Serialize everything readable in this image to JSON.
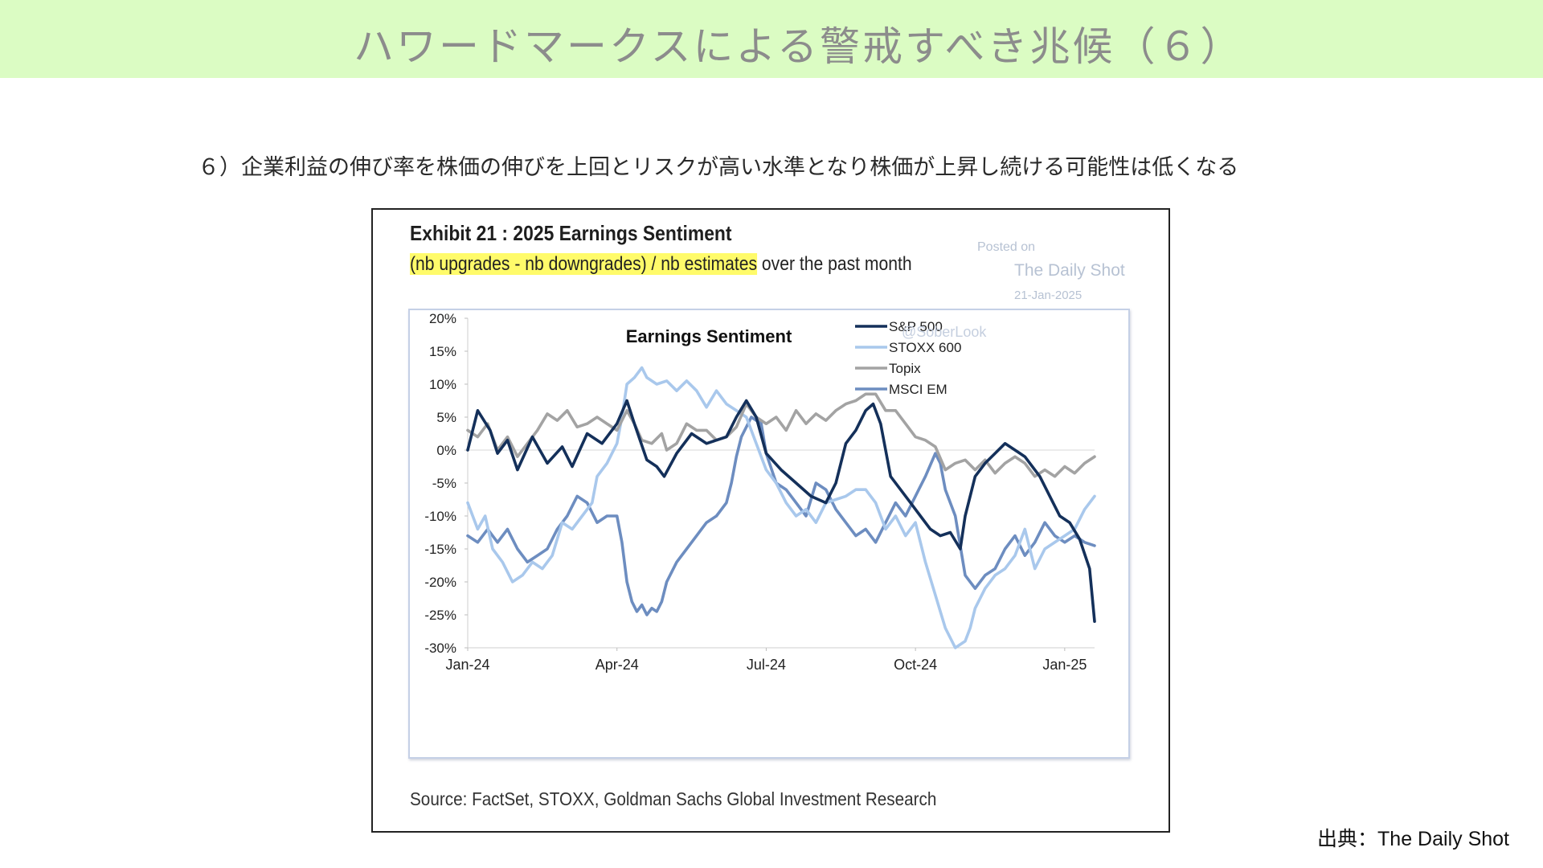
{
  "header": {
    "title": "ハワードマークスによる警戒すべき兆候（６）"
  },
  "subtitle": "６）企業利益の伸び率を株価の伸びを上回とリスクが高い水準となり株価が上昇し続ける可能性は低くなる",
  "exhibit": {
    "title": "Exhibit 21 : 2025 Earnings Sentiment",
    "desc_highlight": "(nb upgrades - nb downgrades) / nb estimates",
    "desc_rest": " over the past month",
    "posted_on": "Posted on",
    "posted_source": "The Daily Shot",
    "posted_date": "21-Jan-2025",
    "watermark": "@SoberLook",
    "source": "Source: FactSet, STOXX, Goldman Sachs Global Investment Research"
  },
  "credit": "出典：The Daily Shot",
  "chart_data": {
    "type": "line",
    "title": "Earnings Sentiment",
    "xlabel": "",
    "ylabel": "",
    "x_ticks": [
      "Jan-24",
      "Apr-24",
      "Jul-24",
      "Oct-24",
      "Jan-25"
    ],
    "y_ticks": [
      "20%",
      "15%",
      "10%",
      "5%",
      "0%",
      "-5%",
      "-10%",
      "-15%",
      "-20%",
      "-25%",
      "-30%"
    ],
    "ylim": [
      -30,
      20
    ],
    "xlim": [
      0,
      12.6
    ],
    "x_unit": "months since Jan-24",
    "grid": false,
    "zero_line": true,
    "legend_position": "top-right",
    "series": [
      {
        "name": "S&P 500",
        "color": "#14305a",
        "points": [
          [
            0,
            0
          ],
          [
            0.2,
            6
          ],
          [
            0.45,
            3
          ],
          [
            0.6,
            -0.5
          ],
          [
            0.8,
            1.5
          ],
          [
            1.0,
            -3
          ],
          [
            1.3,
            2
          ],
          [
            1.6,
            -2
          ],
          [
            1.9,
            0.5
          ],
          [
            2.1,
            -2.5
          ],
          [
            2.4,
            2.5
          ],
          [
            2.7,
            1
          ],
          [
            3.0,
            4
          ],
          [
            3.2,
            7.5
          ],
          [
            3.35,
            4
          ],
          [
            3.6,
            -1.5
          ],
          [
            3.8,
            -2.5
          ],
          [
            3.95,
            -4
          ],
          [
            4.2,
            -0.5
          ],
          [
            4.5,
            2.5
          ],
          [
            4.8,
            1
          ],
          [
            5.2,
            2
          ],
          [
            5.4,
            5
          ],
          [
            5.6,
            7.5
          ],
          [
            5.8,
            5
          ],
          [
            6.0,
            -0.5
          ],
          [
            6.3,
            -3
          ],
          [
            6.6,
            -5
          ],
          [
            6.9,
            -7
          ],
          [
            7.2,
            -8
          ],
          [
            7.4,
            -5
          ],
          [
            7.6,
            1
          ],
          [
            7.8,
            3
          ],
          [
            8.0,
            6
          ],
          [
            8.15,
            7
          ],
          [
            8.3,
            4
          ],
          [
            8.5,
            -4
          ],
          [
            8.7,
            -6
          ],
          [
            8.9,
            -8
          ],
          [
            9.1,
            -10
          ],
          [
            9.3,
            -12
          ],
          [
            9.5,
            -13
          ],
          [
            9.7,
            -12.5
          ],
          [
            9.9,
            -15
          ],
          [
            10.0,
            -10
          ],
          [
            10.2,
            -4
          ],
          [
            10.4,
            -2
          ],
          [
            10.6,
            -0.5
          ],
          [
            10.8,
            1
          ],
          [
            11.0,
            0
          ],
          [
            11.2,
            -1
          ],
          [
            11.5,
            -4
          ],
          [
            11.7,
            -7
          ],
          [
            11.9,
            -10
          ],
          [
            12.1,
            -11
          ],
          [
            12.3,
            -13.5
          ],
          [
            12.5,
            -18
          ],
          [
            12.6,
            -26
          ]
        ]
      },
      {
        "name": "STOXX 600",
        "color": "#a9c8ec",
        "points": [
          [
            0,
            -8
          ],
          [
            0.2,
            -12
          ],
          [
            0.35,
            -10
          ],
          [
            0.5,
            -15
          ],
          [
            0.7,
            -17
          ],
          [
            0.9,
            -20
          ],
          [
            1.1,
            -19
          ],
          [
            1.3,
            -17
          ],
          [
            1.5,
            -18
          ],
          [
            1.7,
            -16
          ],
          [
            1.9,
            -11
          ],
          [
            2.1,
            -12
          ],
          [
            2.3,
            -10
          ],
          [
            2.5,
            -8
          ],
          [
            2.6,
            -4
          ],
          [
            2.8,
            -2
          ],
          [
            3.0,
            1
          ],
          [
            3.1,
            5
          ],
          [
            3.2,
            10
          ],
          [
            3.35,
            11
          ],
          [
            3.5,
            12.5
          ],
          [
            3.6,
            11
          ],
          [
            3.8,
            10
          ],
          [
            4.0,
            10.5
          ],
          [
            4.2,
            9
          ],
          [
            4.4,
            10.5
          ],
          [
            4.6,
            9
          ],
          [
            4.8,
            6.5
          ],
          [
            5.0,
            9
          ],
          [
            5.2,
            7
          ],
          [
            5.4,
            6
          ],
          [
            5.6,
            5
          ],
          [
            5.8,
            1
          ],
          [
            6.0,
            -3
          ],
          [
            6.2,
            -5
          ],
          [
            6.4,
            -8
          ],
          [
            6.6,
            -10
          ],
          [
            6.8,
            -9
          ],
          [
            7.0,
            -11
          ],
          [
            7.2,
            -8
          ],
          [
            7.4,
            -7.5
          ],
          [
            7.6,
            -7
          ],
          [
            7.8,
            -6
          ],
          [
            8.0,
            -6
          ],
          [
            8.2,
            -8
          ],
          [
            8.4,
            -12
          ],
          [
            8.6,
            -10
          ],
          [
            8.8,
            -13
          ],
          [
            9.0,
            -11
          ],
          [
            9.2,
            -17
          ],
          [
            9.4,
            -22
          ],
          [
            9.6,
            -27
          ],
          [
            9.8,
            -30
          ],
          [
            10.0,
            -29
          ],
          [
            10.1,
            -27
          ],
          [
            10.2,
            -24
          ],
          [
            10.4,
            -21
          ],
          [
            10.6,
            -19
          ],
          [
            10.8,
            -18
          ],
          [
            11.0,
            -16
          ],
          [
            11.2,
            -12
          ],
          [
            11.4,
            -18
          ],
          [
            11.6,
            -15
          ],
          [
            11.8,
            -14
          ],
          [
            12.0,
            -13
          ],
          [
            12.2,
            -12
          ],
          [
            12.4,
            -9
          ],
          [
            12.6,
            -7
          ]
        ]
      },
      {
        "name": "Topix",
        "color": "#a3a3a3",
        "points": [
          [
            0,
            3
          ],
          [
            0.2,
            2
          ],
          [
            0.4,
            4
          ],
          [
            0.6,
            0
          ],
          [
            0.8,
            2
          ],
          [
            1.0,
            -1
          ],
          [
            1.2,
            1
          ],
          [
            1.4,
            3
          ],
          [
            1.6,
            5.5
          ],
          [
            1.8,
            4.5
          ],
          [
            2.0,
            6
          ],
          [
            2.2,
            3.5
          ],
          [
            2.4,
            4
          ],
          [
            2.6,
            5
          ],
          [
            2.8,
            4
          ],
          [
            3.0,
            3
          ],
          [
            3.2,
            6
          ],
          [
            3.35,
            4
          ],
          [
            3.5,
            1.5
          ],
          [
            3.7,
            1
          ],
          [
            3.9,
            2.5
          ],
          [
            4.0,
            0
          ],
          [
            4.2,
            1
          ],
          [
            4.4,
            4
          ],
          [
            4.6,
            3
          ],
          [
            4.8,
            3
          ],
          [
            5.0,
            1.5
          ],
          [
            5.2,
            2
          ],
          [
            5.4,
            3.5
          ],
          [
            5.6,
            7
          ],
          [
            5.8,
            5
          ],
          [
            6.0,
            4
          ],
          [
            6.2,
            5
          ],
          [
            6.4,
            3
          ],
          [
            6.6,
            6
          ],
          [
            6.8,
            4
          ],
          [
            7.0,
            5.5
          ],
          [
            7.2,
            4.5
          ],
          [
            7.4,
            6
          ],
          [
            7.6,
            7
          ],
          [
            7.8,
            7.5
          ],
          [
            8.0,
            8.5
          ],
          [
            8.2,
            8.5
          ],
          [
            8.4,
            6
          ],
          [
            8.6,
            6
          ],
          [
            8.8,
            4
          ],
          [
            9.0,
            2
          ],
          [
            9.2,
            1.5
          ],
          [
            9.4,
            0.5
          ],
          [
            9.6,
            -3
          ],
          [
            9.8,
            -2
          ],
          [
            10.0,
            -1.5
          ],
          [
            10.2,
            -3
          ],
          [
            10.4,
            -1.5
          ],
          [
            10.6,
            -3.5
          ],
          [
            10.8,
            -2
          ],
          [
            11.0,
            -1
          ],
          [
            11.2,
            -2
          ],
          [
            11.4,
            -4
          ],
          [
            11.6,
            -3
          ],
          [
            11.8,
            -4
          ],
          [
            12.0,
            -2.5
          ],
          [
            12.2,
            -3.5
          ],
          [
            12.4,
            -2
          ],
          [
            12.6,
            -1
          ]
        ]
      },
      {
        "name": "MSCI EM",
        "color": "#6d8dc0",
        "points": [
          [
            0,
            -13
          ],
          [
            0.2,
            -14
          ],
          [
            0.4,
            -12
          ],
          [
            0.6,
            -14
          ],
          [
            0.8,
            -12
          ],
          [
            1.0,
            -15
          ],
          [
            1.2,
            -17
          ],
          [
            1.4,
            -16
          ],
          [
            1.6,
            -15
          ],
          [
            1.8,
            -12
          ],
          [
            2.0,
            -10
          ],
          [
            2.2,
            -7
          ],
          [
            2.4,
            -8
          ],
          [
            2.6,
            -11
          ],
          [
            2.8,
            -10
          ],
          [
            3.0,
            -10
          ],
          [
            3.1,
            -14
          ],
          [
            3.2,
            -20
          ],
          [
            3.3,
            -23
          ],
          [
            3.4,
            -24.5
          ],
          [
            3.5,
            -23.5
          ],
          [
            3.6,
            -25
          ],
          [
            3.7,
            -24
          ],
          [
            3.8,
            -24.5
          ],
          [
            3.9,
            -23
          ],
          [
            4.0,
            -20
          ],
          [
            4.2,
            -17
          ],
          [
            4.4,
            -15
          ],
          [
            4.6,
            -13
          ],
          [
            4.8,
            -11
          ],
          [
            5.0,
            -10
          ],
          [
            5.2,
            -8
          ],
          [
            5.3,
            -5
          ],
          [
            5.4,
            -1
          ],
          [
            5.5,
            2
          ],
          [
            5.7,
            5
          ],
          [
            5.9,
            4
          ],
          [
            6.0,
            -0.5
          ],
          [
            6.2,
            -5
          ],
          [
            6.4,
            -6
          ],
          [
            6.6,
            -8
          ],
          [
            6.8,
            -10
          ],
          [
            7.0,
            -5
          ],
          [
            7.2,
            -6
          ],
          [
            7.4,
            -9
          ],
          [
            7.6,
            -11
          ],
          [
            7.8,
            -13
          ],
          [
            8.0,
            -12
          ],
          [
            8.2,
            -14
          ],
          [
            8.4,
            -11
          ],
          [
            8.6,
            -8
          ],
          [
            8.8,
            -10
          ],
          [
            9.0,
            -7
          ],
          [
            9.2,
            -4
          ],
          [
            9.4,
            -0.5
          ],
          [
            9.5,
            -2
          ],
          [
            9.6,
            -6
          ],
          [
            9.8,
            -10
          ],
          [
            10.0,
            -19
          ],
          [
            10.2,
            -21
          ],
          [
            10.4,
            -19
          ],
          [
            10.6,
            -18
          ],
          [
            10.8,
            -15
          ],
          [
            11.0,
            -13
          ],
          [
            11.2,
            -16
          ],
          [
            11.4,
            -14
          ],
          [
            11.6,
            -11
          ],
          [
            11.8,
            -13
          ],
          [
            12.0,
            -14
          ],
          [
            12.2,
            -13
          ],
          [
            12.4,
            -14
          ],
          [
            12.6,
            -14.5
          ]
        ]
      }
    ]
  }
}
